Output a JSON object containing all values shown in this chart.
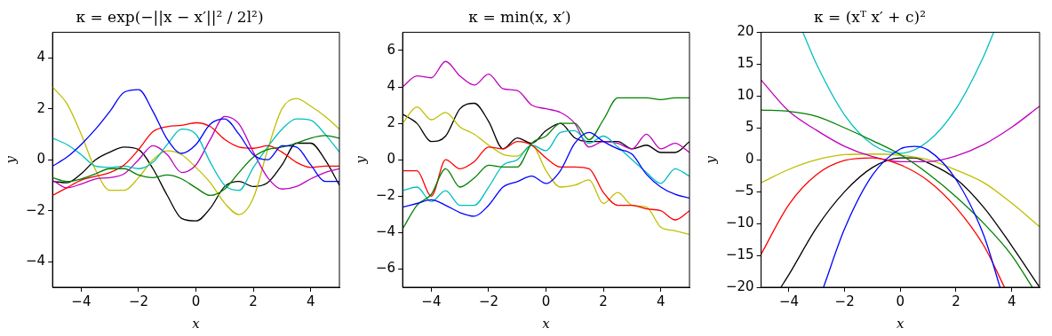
{
  "chart_data": [
    {
      "type": "line",
      "title": "κ = exp(−||x − x′||² / 2l²)",
      "xlabel": "x",
      "ylabel": "y",
      "xlim": [
        -5,
        5
      ],
      "xticks": [
        -4,
        -2,
        0,
        2,
        4
      ],
      "ylim": [
        -5,
        5
      ],
      "yticks": [
        -4,
        -2,
        0,
        2,
        4
      ],
      "x": [
        -5,
        -4.5,
        -4,
        -3.5,
        -3,
        -2.5,
        -2,
        -1.5,
        -1,
        -0.5,
        0,
        0.5,
        1,
        1.5,
        2,
        2.5,
        3,
        3.5,
        4,
        4.5,
        5
      ],
      "series": [
        {
          "color": "#0000ff",
          "values": [
            -0.25,
            0.1,
            0.6,
            1.2,
            1.9,
            2.65,
            2.75,
            1.9,
            0.8,
            0.25,
            0.6,
            1.4,
            1.6,
            1.0,
            0.2,
            0.0,
            0.55,
            0.5,
            -0.2,
            -0.85,
            -0.85
          ]
        },
        {
          "color": "#008000",
          "values": [
            -0.7,
            -0.85,
            -0.75,
            -0.55,
            -0.35,
            -0.35,
            -0.6,
            -0.7,
            -0.6,
            -0.75,
            -1.1,
            -1.4,
            -1.15,
            -0.5,
            0.1,
            0.4,
            0.5,
            0.65,
            0.85,
            0.95,
            0.85
          ]
        },
        {
          "color": "#ff0000",
          "values": [
            -1.4,
            -1.1,
            -0.8,
            -0.65,
            -0.5,
            -0.2,
            0.4,
            1.1,
            1.3,
            1.35,
            1.45,
            1.3,
            0.8,
            0.5,
            0.45,
            0.55,
            0.3,
            -0.1,
            -0.3,
            -0.25,
            -0.25
          ]
        },
        {
          "color": "#00bfbf",
          "values": [
            0.85,
            0.6,
            0.2,
            -0.25,
            -0.3,
            -0.25,
            -0.35,
            -0.1,
            0.6,
            1.2,
            1.0,
            -0.1,
            -1.0,
            -1.2,
            -0.3,
            0.5,
            1.2,
            1.6,
            1.55,
            1.0,
            0.3
          ]
        },
        {
          "color": "#bf00bf",
          "values": [
            -0.8,
            -1.1,
            -0.95,
            -0.75,
            -0.7,
            -0.55,
            0.0,
            0.55,
            0.2,
            -0.5,
            -0.2,
            0.8,
            1.7,
            1.4,
            0.3,
            -0.7,
            -1.15,
            -1.05,
            -0.75,
            -0.5,
            -0.35
          ]
        },
        {
          "color": "#bfbf00",
          "values": [
            2.85,
            2.2,
            1.0,
            -0.4,
            -1.2,
            -1.2,
            -0.7,
            0.0,
            0.35,
            0.2,
            -0.3,
            -0.9,
            -1.7,
            -2.15,
            -1.5,
            0.4,
            2.0,
            2.4,
            2.1,
            1.7,
            1.2
          ]
        },
        {
          "color": "#000000",
          "values": [
            -0.85,
            -0.9,
            -0.55,
            0.0,
            0.3,
            0.5,
            0.4,
            -0.35,
            -1.4,
            -2.3,
            -2.4,
            -1.9,
            -1.05,
            -0.85,
            -1.05,
            -0.9,
            -0.2,
            0.65,
            0.65,
            0.0,
            -1.0
          ]
        }
      ]
    },
    {
      "type": "line",
      "title": "κ = min(x, x′)",
      "xlabel": "x",
      "ylabel": "y",
      "xlim": [
        -5,
        5
      ],
      "xticks": [
        -4,
        -2,
        0,
        2,
        4
      ],
      "ylim": [
        -7,
        7
      ],
      "yticks": [
        -6,
        -4,
        -2,
        0,
        2,
        4,
        6
      ],
      "x": [
        -5,
        -4.5,
        -4,
        -3.5,
        -3,
        -2.5,
        -2,
        -1.5,
        -1,
        -0.5,
        0,
        0.5,
        1,
        1.5,
        2,
        2.5,
        3,
        3.5,
        4,
        4.5,
        5
      ],
      "series": [
        {
          "color": "#0000ff",
          "values": [
            -2.6,
            -2.4,
            -2.2,
            -2.5,
            -2.9,
            -3.1,
            -2.5,
            -1.5,
            -1.2,
            -0.9,
            -1.3,
            -0.6,
            0.9,
            1.5,
            1.0,
            0.6,
            0.3,
            -0.8,
            -1.5,
            -1.9,
            -2.1
          ]
        },
        {
          "color": "#008000",
          "values": [
            -3.8,
            -2.5,
            -1.9,
            -0.5,
            -1.5,
            -1.0,
            -0.3,
            -0.4,
            -0.4,
            0.9,
            1.3,
            2.0,
            2.0,
            1.1,
            2.2,
            3.4,
            3.4,
            3.4,
            3.3,
            3.4,
            3.4
          ]
        },
        {
          "color": "#ff0000",
          "values": [
            -0.6,
            -0.6,
            -2.0,
            0.0,
            -0.5,
            -0.1,
            0.7,
            0.6,
            1.0,
            0.8,
            0.1,
            -0.4,
            -0.4,
            -0.5,
            -1.8,
            -2.5,
            -2.5,
            -2.7,
            -2.8,
            -3.3,
            -2.8
          ]
        },
        {
          "color": "#00bfbf",
          "values": [
            -1.7,
            -1.5,
            -2.3,
            -1.7,
            -2.5,
            -2.5,
            -1.5,
            -0.3,
            0.0,
            0.8,
            0.5,
            1.5,
            1.6,
            0.9,
            1.3,
            0.7,
            0.0,
            -0.7,
            -1.3,
            -0.5,
            -0.9
          ]
        },
        {
          "color": "#bf00bf",
          "values": [
            4.0,
            4.6,
            4.5,
            5.4,
            4.6,
            4.1,
            4.7,
            3.9,
            3.8,
            3.0,
            2.8,
            2.6,
            2.0,
            0.7,
            1.0,
            0.9,
            0.6,
            1.4,
            0.6,
            0.9,
            0.4
          ]
        },
        {
          "color": "#bfbf00",
          "values": [
            2.0,
            2.9,
            2.2,
            2.6,
            1.8,
            1.4,
            0.8,
            0.3,
            0.2,
            0.8,
            -0.6,
            -1.5,
            -1.4,
            -1.1,
            -2.4,
            -1.8,
            -2.5,
            -2.6,
            -3.7,
            -3.9,
            -4.1
          ]
        },
        {
          "color": "#000000",
          "values": [
            2.5,
            2.0,
            1.0,
            1.3,
            2.8,
            3.1,
            2.1,
            0.6,
            1.2,
            0.9,
            1.6,
            2.0,
            1.2,
            1.0,
            1.0,
            1.0,
            0.6,
            0.8,
            0.4,
            0.4,
            1.0
          ]
        }
      ]
    },
    {
      "type": "line",
      "title": "κ = (xᵀ x′ + c)²",
      "xlabel": "x",
      "ylabel": "y",
      "xlim": [
        -5,
        5
      ],
      "xticks": [
        -4,
        -2,
        0,
        2,
        4
      ],
      "ylim": [
        -20,
        20
      ],
      "yticks": [
        -20,
        -15,
        -10,
        -5,
        0,
        5,
        10,
        15,
        20
      ],
      "series": [
        {
          "color": "#0000ff",
          "x": [
            -2.76,
            -2,
            -1,
            0,
            0.5,
            1,
            2,
            3,
            3.58
          ],
          "values": [
            -20,
            -10.8,
            -2.4,
            1.7,
            2.1,
            1.5,
            -3.1,
            -11.9,
            -20
          ]
        },
        {
          "color": "#008000",
          "x": [
            -5,
            -4,
            -3,
            -2,
            -1,
            0,
            1,
            2,
            3,
            4,
            4.74
          ],
          "values": [
            7.8,
            7.6,
            6.8,
            5.0,
            3.0,
            0.8,
            -2.2,
            -5.8,
            -10.0,
            -15.0,
            -20
          ]
        },
        {
          "color": "#ff0000",
          "x": [
            -5,
            -4,
            -3,
            -2,
            -1,
            0,
            1,
            2,
            3,
            3.74
          ],
          "values": [
            -14.8,
            -7.0,
            -2.3,
            -0.1,
            0.3,
            -0.8,
            -3.3,
            -7.5,
            -13.5,
            -20
          ]
        },
        {
          "color": "#00bfbf",
          "x": [
            -3.5,
            -3,
            -2,
            -1,
            0,
            1,
            2,
            3,
            3.35
          ],
          "values": [
            20,
            14.9,
            7.0,
            2.4,
            1.0,
            2.9,
            8.0,
            16.3,
            20
          ]
        },
        {
          "color": "#bf00bf",
          "x": [
            -5,
            -4,
            -3,
            -2,
            -1,
            0,
            1,
            2,
            3,
            4,
            5
          ],
          "values": [
            12.5,
            7.6,
            4.6,
            2.1,
            0.5,
            -0.3,
            -0.3,
            0.6,
            2.4,
            5.1,
            8.4
          ]
        },
        {
          "color": "#bfbf00",
          "x": [
            -5,
            -4,
            -3,
            -2,
            -1,
            0,
            1,
            2,
            3,
            4,
            5
          ],
          "values": [
            -3.6,
            -1.5,
            0.0,
            0.8,
            0.9,
            0.7,
            0.0,
            -1.6,
            -3.6,
            -6.8,
            -10.5
          ]
        },
        {
          "color": "#000000",
          "x": [
            -4.29,
            -4,
            -3,
            -2,
            -1,
            0,
            0.5,
            1,
            2,
            3,
            4,
            5
          ],
          "values": [
            -20,
            -18.0,
            -10.6,
            -5.0,
            -1.2,
            0.3,
            0.3,
            -0.5,
            -3.0,
            -7.5,
            -13.5,
            -20
          ]
        }
      ]
    }
  ]
}
